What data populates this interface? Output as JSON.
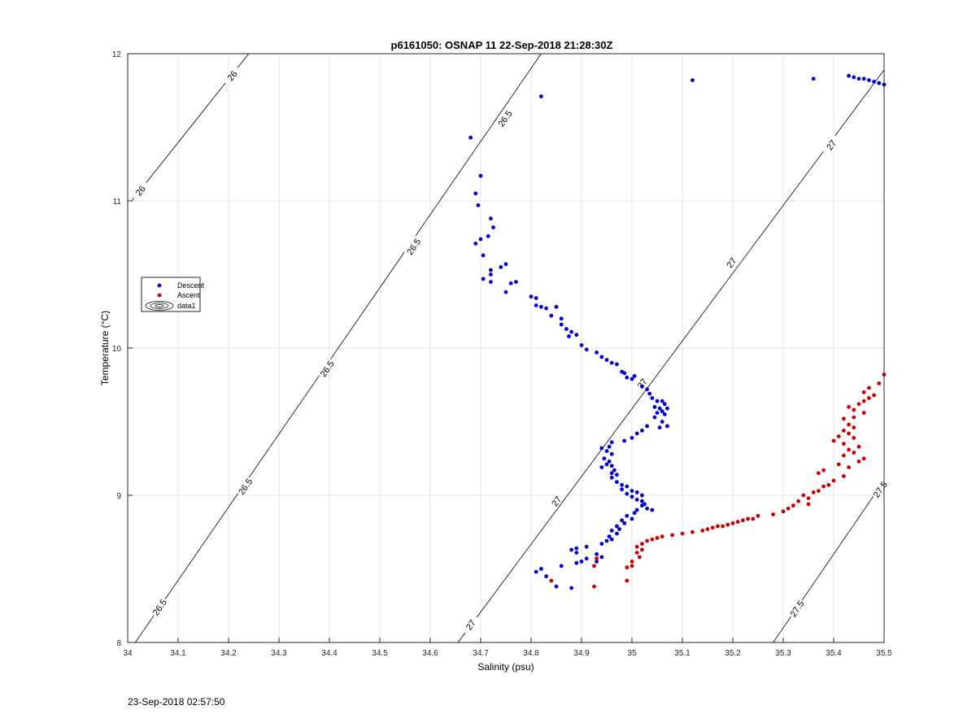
{
  "footer": {
    "timestamp": "23-Sep-2018 02:57:50"
  },
  "chart_data": {
    "type": "scatter",
    "title": "p6161050: OSNAP 11 22-Sep-2018 21:28:30Z",
    "xlabel": "Salinity (psu)",
    "ylabel": "Temperature (°C)",
    "xlim": [
      34,
      35.5
    ],
    "ylim": [
      8,
      12
    ],
    "grid": true,
    "legend_position": "left",
    "x_ticks": [
      "34",
      "34.1",
      "34.2",
      "34.3",
      "34.4",
      "34.5",
      "34.6",
      "34.7",
      "34.8",
      "34.9",
      "35",
      "35.1",
      "35.2",
      "35.3",
      "35.4",
      "35.5"
    ],
    "y_ticks": [
      "8",
      "9",
      "10",
      "11",
      "12"
    ],
    "legend": [
      {
        "label": "Descent",
        "marker": "dot",
        "color": "#0000cc"
      },
      {
        "label": "Ascent",
        "marker": "dot",
        "color": "#cc0000"
      },
      {
        "label": "data1",
        "marker": "contour",
        "color": "#000000"
      }
    ],
    "contours": [
      {
        "level": "26",
        "points": [
          [
            34.008,
            11.0
          ],
          [
            34.24,
            12.0
          ]
        ],
        "labels": [
          {
            "x": 34.025,
            "y": 11.07
          },
          {
            "x": 34.207,
            "y": 11.85
          }
        ]
      },
      {
        "level": "26.5",
        "points": [
          [
            34.015,
            8.0
          ],
          [
            34.82,
            12.0
          ]
        ],
        "labels": [
          {
            "x": 34.063,
            "y": 8.24
          },
          {
            "x": 34.233,
            "y": 9.06
          },
          {
            "x": 34.395,
            "y": 9.86
          },
          {
            "x": 34.567,
            "y": 10.69
          },
          {
            "x": 34.748,
            "y": 11.56
          }
        ]
      },
      {
        "level": "27",
        "points": [
          [
            34.655,
            8.0
          ],
          [
            35.5,
            11.89
          ]
        ],
        "labels": [
          {
            "x": 34.68,
            "y": 8.12
          },
          {
            "x": 34.85,
            "y": 8.96
          },
          {
            "x": 35.02,
            "y": 9.76
          },
          {
            "x": 35.197,
            "y": 10.58
          },
          {
            "x": 35.395,
            "y": 11.38
          }
        ]
      },
      {
        "level": "27.5",
        "points": [
          [
            35.28,
            8.0
          ],
          [
            35.5,
            9.1
          ]
        ],
        "labels": [
          {
            "x": 35.327,
            "y": 8.23
          },
          {
            "x": 35.492,
            "y": 9.04
          }
        ]
      }
    ],
    "series": [
      {
        "name": "Descent",
        "color": "#0000cc",
        "points": [
          [
            34.68,
            11.43
          ],
          [
            34.82,
            11.71
          ],
          [
            35.12,
            11.82
          ],
          [
            35.36,
            11.83
          ],
          [
            35.43,
            11.85
          ],
          [
            35.44,
            11.84
          ],
          [
            35.45,
            11.83
          ],
          [
            35.46,
            11.83
          ],
          [
            35.47,
            11.82
          ],
          [
            35.48,
            11.81
          ],
          [
            35.49,
            11.8
          ],
          [
            35.5,
            11.79
          ],
          [
            34.7,
            11.17
          ],
          [
            34.69,
            11.05
          ],
          [
            34.695,
            10.97
          ],
          [
            34.72,
            10.88
          ],
          [
            34.725,
            10.82
          ],
          [
            34.715,
            10.76
          ],
          [
            34.7,
            10.74
          ],
          [
            34.69,
            10.71
          ],
          [
            34.705,
            10.63
          ],
          [
            34.74,
            10.55
          ],
          [
            34.72,
            10.53
          ],
          [
            34.75,
            10.57
          ],
          [
            34.72,
            10.5
          ],
          [
            34.705,
            10.47
          ],
          [
            34.72,
            10.45
          ],
          [
            34.76,
            10.44
          ],
          [
            34.77,
            10.45
          ],
          [
            34.75,
            10.38
          ],
          [
            34.8,
            10.35
          ],
          [
            34.81,
            10.34
          ],
          [
            34.81,
            10.29
          ],
          [
            34.82,
            10.28
          ],
          [
            34.83,
            10.27
          ],
          [
            34.85,
            10.28
          ],
          [
            34.84,
            10.22
          ],
          [
            34.86,
            10.2
          ],
          [
            34.86,
            10.16
          ],
          [
            34.87,
            10.13
          ],
          [
            34.88,
            10.11
          ],
          [
            34.875,
            10.08
          ],
          [
            34.89,
            10.09
          ],
          [
            34.9,
            10.02
          ],
          [
            34.91,
            9.99
          ],
          [
            34.93,
            9.97
          ],
          [
            34.94,
            9.94
          ],
          [
            34.95,
            9.92
          ],
          [
            34.96,
            9.9
          ],
          [
            34.97,
            9.89
          ],
          [
            34.98,
            9.84
          ],
          [
            34.985,
            9.83
          ],
          [
            34.99,
            9.8
          ],
          [
            35.0,
            9.79
          ],
          [
            35.005,
            9.81
          ],
          [
            35.02,
            9.74
          ],
          [
            35.03,
            9.72
          ],
          [
            35.035,
            9.69
          ],
          [
            35.04,
            9.66
          ],
          [
            35.05,
            9.64
          ],
          [
            35.06,
            9.64
          ],
          [
            35.065,
            9.62
          ],
          [
            35.045,
            9.6
          ],
          [
            35.055,
            9.59
          ],
          [
            35.07,
            9.59
          ],
          [
            35.06,
            9.57
          ],
          [
            35.05,
            9.56
          ],
          [
            35.065,
            9.55
          ],
          [
            35.045,
            9.53
          ],
          [
            35.06,
            9.5
          ],
          [
            35.07,
            9.47
          ],
          [
            35.055,
            9.46
          ],
          [
            35.03,
            9.47
          ],
          [
            35.02,
            9.44
          ],
          [
            35.01,
            9.42
          ],
          [
            35.0,
            9.39
          ],
          [
            34.985,
            9.37
          ],
          [
            34.96,
            9.36
          ],
          [
            34.955,
            9.33
          ],
          [
            34.94,
            9.32
          ],
          [
            34.95,
            9.3
          ],
          [
            34.96,
            9.28
          ],
          [
            34.945,
            9.25
          ],
          [
            34.955,
            9.23
          ],
          [
            34.95,
            9.21
          ],
          [
            34.96,
            9.2
          ],
          [
            34.94,
            9.19
          ],
          [
            34.965,
            9.17
          ],
          [
            34.96,
            9.15
          ],
          [
            34.97,
            9.14
          ],
          [
            34.96,
            9.12
          ],
          [
            34.97,
            9.09
          ],
          [
            34.98,
            9.07
          ],
          [
            34.99,
            9.06
          ],
          [
            34.98,
            9.04
          ],
          [
            35.0,
            9.03
          ],
          [
            34.99,
            9.01
          ],
          [
            35.01,
            9.02
          ],
          [
            35.02,
            9.0
          ],
          [
            35.0,
            8.99
          ],
          [
            35.01,
            8.97
          ],
          [
            35.02,
            8.96
          ],
          [
            35.025,
            8.94
          ],
          [
            35.02,
            8.93
          ],
          [
            35.03,
            8.91
          ],
          [
            35.04,
            8.9
          ],
          [
            35.01,
            8.9
          ],
          [
            35.005,
            8.88
          ],
          [
            34.99,
            8.86
          ],
          [
            35.0,
            8.84
          ],
          [
            34.98,
            8.83
          ],
          [
            34.985,
            8.81
          ],
          [
            34.97,
            8.79
          ],
          [
            34.975,
            8.77
          ],
          [
            34.96,
            8.76
          ],
          [
            34.97,
            8.74
          ],
          [
            34.955,
            8.72
          ],
          [
            34.96,
            8.7
          ],
          [
            34.95,
            8.69
          ],
          [
            34.94,
            8.67
          ],
          [
            34.91,
            8.65
          ],
          [
            34.89,
            8.64
          ],
          [
            34.88,
            8.63
          ],
          [
            34.89,
            8.61
          ],
          [
            34.93,
            8.6
          ],
          [
            34.94,
            8.58
          ],
          [
            34.91,
            8.57
          ],
          [
            34.9,
            8.55
          ],
          [
            34.93,
            8.55
          ],
          [
            34.89,
            8.54
          ],
          [
            34.86,
            8.52
          ],
          [
            34.82,
            8.5
          ],
          [
            34.81,
            8.48
          ],
          [
            34.85,
            8.38
          ],
          [
            34.88,
            8.37
          ],
          [
            34.83,
            8.45
          ]
        ]
      },
      {
        "name": "Ascent",
        "color": "#cc0000",
        "points": [
          [
            35.5,
            9.82
          ],
          [
            35.49,
            9.76
          ],
          [
            35.47,
            9.73
          ],
          [
            35.46,
            9.7
          ],
          [
            35.48,
            9.68
          ],
          [
            35.47,
            9.66
          ],
          [
            35.46,
            9.64
          ],
          [
            35.45,
            9.62
          ],
          [
            35.43,
            9.6
          ],
          [
            35.44,
            9.58
          ],
          [
            35.46,
            9.56
          ],
          [
            35.44,
            9.53
          ],
          [
            35.42,
            9.52
          ],
          [
            35.43,
            9.48
          ],
          [
            35.44,
            9.46
          ],
          [
            35.42,
            9.44
          ],
          [
            35.43,
            9.42
          ],
          [
            35.41,
            9.4
          ],
          [
            35.44,
            9.39
          ],
          [
            35.4,
            9.37
          ],
          [
            35.42,
            9.35
          ],
          [
            35.45,
            9.33
          ],
          [
            35.43,
            9.31
          ],
          [
            35.44,
            9.29
          ],
          [
            35.42,
            9.27
          ],
          [
            35.46,
            9.25
          ],
          [
            35.45,
            9.23
          ],
          [
            35.41,
            9.21
          ],
          [
            35.43,
            9.19
          ],
          [
            35.38,
            9.17
          ],
          [
            35.37,
            9.15
          ],
          [
            35.42,
            9.13
          ],
          [
            35.4,
            9.1
          ],
          [
            35.39,
            9.07
          ],
          [
            35.38,
            9.06
          ],
          [
            35.37,
            9.03
          ],
          [
            35.36,
            9.02
          ],
          [
            35.34,
            9.0
          ],
          [
            35.35,
            8.98
          ],
          [
            35.33,
            8.96
          ],
          [
            35.35,
            8.94
          ],
          [
            35.32,
            8.93
          ],
          [
            35.31,
            8.91
          ],
          [
            35.3,
            8.89
          ],
          [
            35.28,
            8.87
          ],
          [
            35.25,
            8.86
          ],
          [
            35.24,
            8.84
          ],
          [
            35.23,
            8.84
          ],
          [
            35.22,
            8.83
          ],
          [
            35.21,
            8.82
          ],
          [
            35.2,
            8.81
          ],
          [
            35.19,
            8.8
          ],
          [
            35.18,
            8.79
          ],
          [
            35.17,
            8.79
          ],
          [
            35.16,
            8.78
          ],
          [
            35.15,
            8.77
          ],
          [
            35.14,
            8.76
          ],
          [
            35.12,
            8.75
          ],
          [
            35.1,
            8.74
          ],
          [
            35.08,
            8.73
          ],
          [
            35.06,
            8.72
          ],
          [
            35.05,
            8.71
          ],
          [
            35.04,
            8.7
          ],
          [
            35.03,
            8.69
          ],
          [
            35.02,
            8.67
          ],
          [
            35.01,
            8.65
          ],
          [
            35.02,
            8.63
          ],
          [
            35.01,
            8.61
          ],
          [
            35.015,
            8.58
          ],
          [
            35.0,
            8.55
          ],
          [
            35.0,
            8.52
          ],
          [
            34.99,
            8.51
          ],
          [
            34.99,
            8.42
          ],
          [
            34.93,
            8.57
          ],
          [
            34.925,
            8.52
          ],
          [
            34.925,
            8.38
          ],
          [
            34.84,
            8.42
          ]
        ]
      }
    ]
  }
}
